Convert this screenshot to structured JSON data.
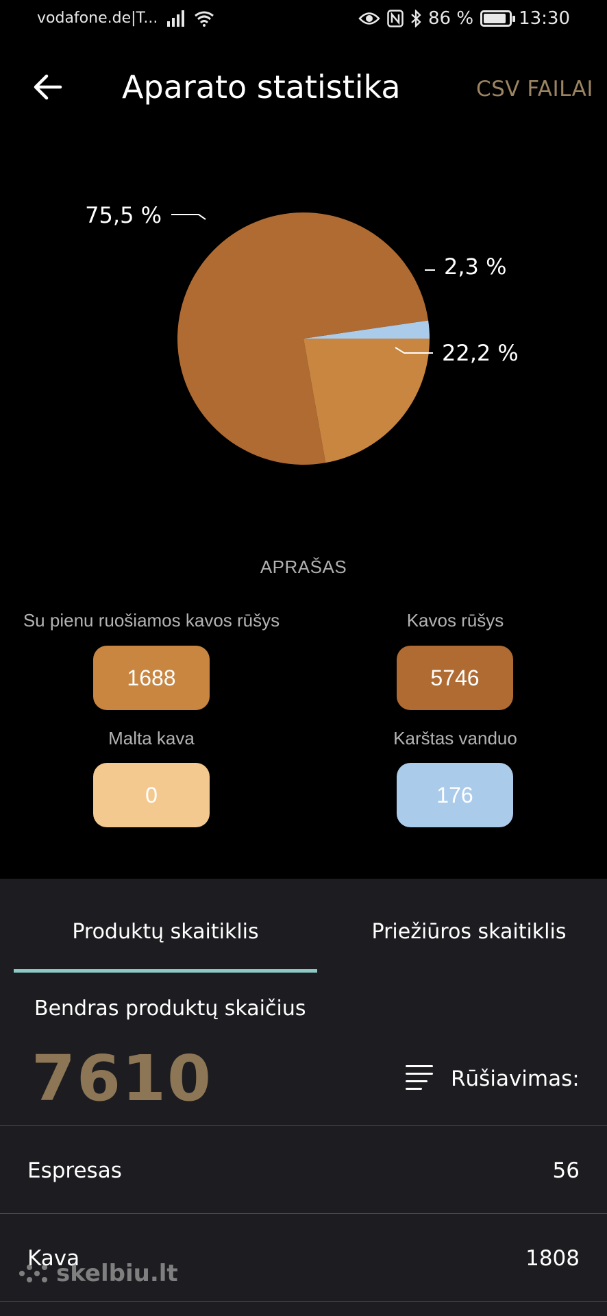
{
  "status_bar": {
    "carrier": "vodafone.de|T...",
    "battery": "86 %",
    "time": "13:30",
    "icons": [
      "signal-icon",
      "wifi-icon",
      "eye-icon",
      "nfc-icon",
      "bluetooth-icon",
      "battery-icon"
    ]
  },
  "header": {
    "title": "Aparato statistika",
    "csv_label": "CSV FAILAI",
    "back_icon": "arrow-left-icon"
  },
  "chart_data": {
    "type": "pie",
    "slices": [
      {
        "label": "75,5 %",
        "value": 75.5,
        "color": "#b06b33"
      },
      {
        "label": "2,3 %",
        "value": 2.3,
        "color": "#abcbeb"
      },
      {
        "label": "22,2 %",
        "value": 22.2,
        "color": "#c88640"
      }
    ]
  },
  "legend": {
    "title": "APRAŠAS",
    "items": [
      {
        "caption": "Su pienu ruošiamos kavos rūšys",
        "value": "1688",
        "color": "#c88640",
        "text_color": "#ffffff"
      },
      {
        "caption": "Kavos rūšys",
        "value": "5746",
        "color": "#b06b33",
        "text_color": "#ffffff"
      },
      {
        "caption": "Malta kava",
        "value": "0",
        "color": "#f3c98f",
        "text_color": "#ffffff"
      },
      {
        "caption": "Karštas vanduo",
        "value": "176",
        "color": "#abcbeb",
        "text_color": "#ffffff"
      }
    ]
  },
  "tabs": [
    {
      "label": "Produktų skaitiklis",
      "active": true
    },
    {
      "label": "Priežiūros skaitiklis",
      "active": false
    }
  ],
  "summary": {
    "total_label": "Bendras produktų skaičius",
    "total_value": "7610",
    "sort_label": "Rūšiavimas:",
    "sort_icon": "sort-lines-icon"
  },
  "products": [
    {
      "name": "Espresas",
      "count": "56"
    },
    {
      "name": "Kava",
      "count": "1808"
    }
  ],
  "watermark": "skelbiu.lt",
  "colors": {
    "background": "#000000",
    "panel": "#1d1d21",
    "accent_gold": "#8d7655",
    "csv_gold": "#9b8461",
    "tab_indicator": "#8ec9c6"
  }
}
